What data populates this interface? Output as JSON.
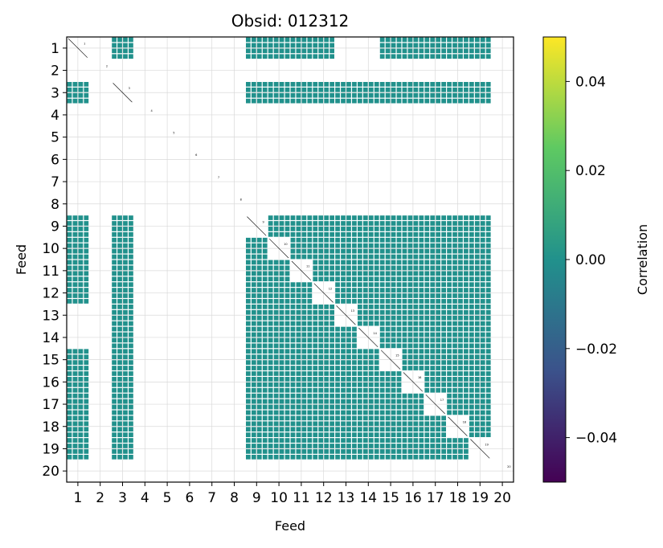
{
  "chart_data": {
    "type": "heatmap",
    "title": "Obsid: 012312",
    "xlabel": "Feed",
    "ylabel": "Feed",
    "feeds": [
      "1",
      "2",
      "3",
      "4",
      "5",
      "6",
      "7",
      "8",
      "9",
      "10",
      "11",
      "12",
      "13",
      "14",
      "15",
      "16",
      "17",
      "18",
      "19",
      "20"
    ],
    "cell_value": 0.0,
    "cell_color": "#21918c",
    "diagonal_color": "#000000",
    "grid": true,
    "colorbar": {
      "label": "Correlation",
      "vmin": -0.05,
      "vmax": 0.05,
      "ticks": [
        0.04,
        0.02,
        0.0,
        -0.02,
        -0.04
      ],
      "tick_labels": [
        "0.04",
        "0.02",
        "0.00",
        "−0.02",
        "−0.04"
      ],
      "colors": [
        "#fde725",
        "#5ec962",
        "#21918c",
        "#3b528b",
        "#440154"
      ]
    },
    "filled_blocks": [
      {
        "rows": [
          1,
          3,
          9,
          10,
          11,
          12,
          15,
          16,
          17,
          18,
          19
        ],
        "cols": [
          1,
          3,
          9,
          10,
          11,
          12,
          15,
          16,
          17,
          18,
          19
        ]
      },
      {
        "rows": [
          3,
          9,
          10,
          11,
          12,
          13,
          14,
          15,
          16,
          17,
          18,
          19
        ],
        "cols": [
          13,
          14
        ]
      },
      {
        "rows": [
          13,
          14
        ],
        "cols": [
          3,
          9,
          10,
          11,
          12,
          13,
          14,
          15,
          16,
          17,
          18,
          19
        ]
      }
    ],
    "diagonal_labels": [
      "1",
      "2",
      "3",
      "4",
      "5",
      "6",
      "7",
      "8",
      "9",
      "10",
      "11",
      "12",
      "13",
      "14",
      "15",
      "16",
      "17",
      "18",
      "19",
      "20"
    ]
  }
}
